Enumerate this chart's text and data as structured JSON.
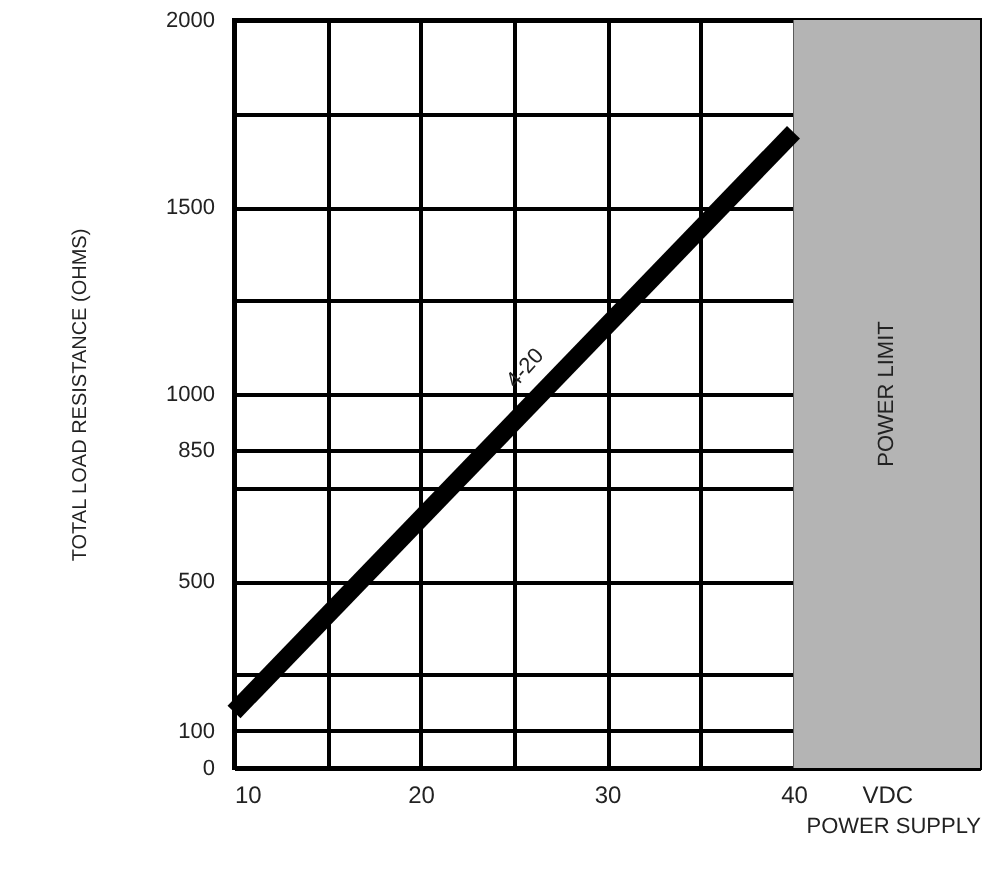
{
  "chart_data": {
    "type": "line",
    "xlabel": "POWER SUPPLY",
    "ylabel": "TOTAL LOAD RESISTANCE (OHMS)",
    "x": [
      10,
      40
    ],
    "series": [
      {
        "color": "#000000",
        "values": [
          150,
          1700
        ]
      }
    ],
    "xlim": [
      10,
      50
    ],
    "ylim": [
      0,
      2000
    ],
    "xticks": [
      10,
      {
        "value": 15,
        "label": null
      },
      20,
      {
        "value": 25,
        "label": null
      },
      30,
      {
        "value": 35,
        "label": null
      },
      40,
      {
        "value": 45,
        "label": "VDC"
      }
    ],
    "yticks": [
      0,
      100,
      {
        "value": 250,
        "label": null
      },
      500,
      {
        "value": 750,
        "label": null
      },
      850,
      1000,
      {
        "value": 1250,
        "label": null
      },
      1500,
      {
        "value": 1750,
        "label": null
      },
      2000
    ],
    "grid": true,
    "marker": "none",
    "line_style": "solid",
    "bands": [
      {
        "axis": "x",
        "from": 40,
        "to": 50,
        "label": "POWER LIMIT",
        "color": "#b4b4b4"
      }
    ],
    "annotations": [
      {
        "text": "4-20",
        "x": 27,
        "y": 1064
      }
    ]
  }
}
